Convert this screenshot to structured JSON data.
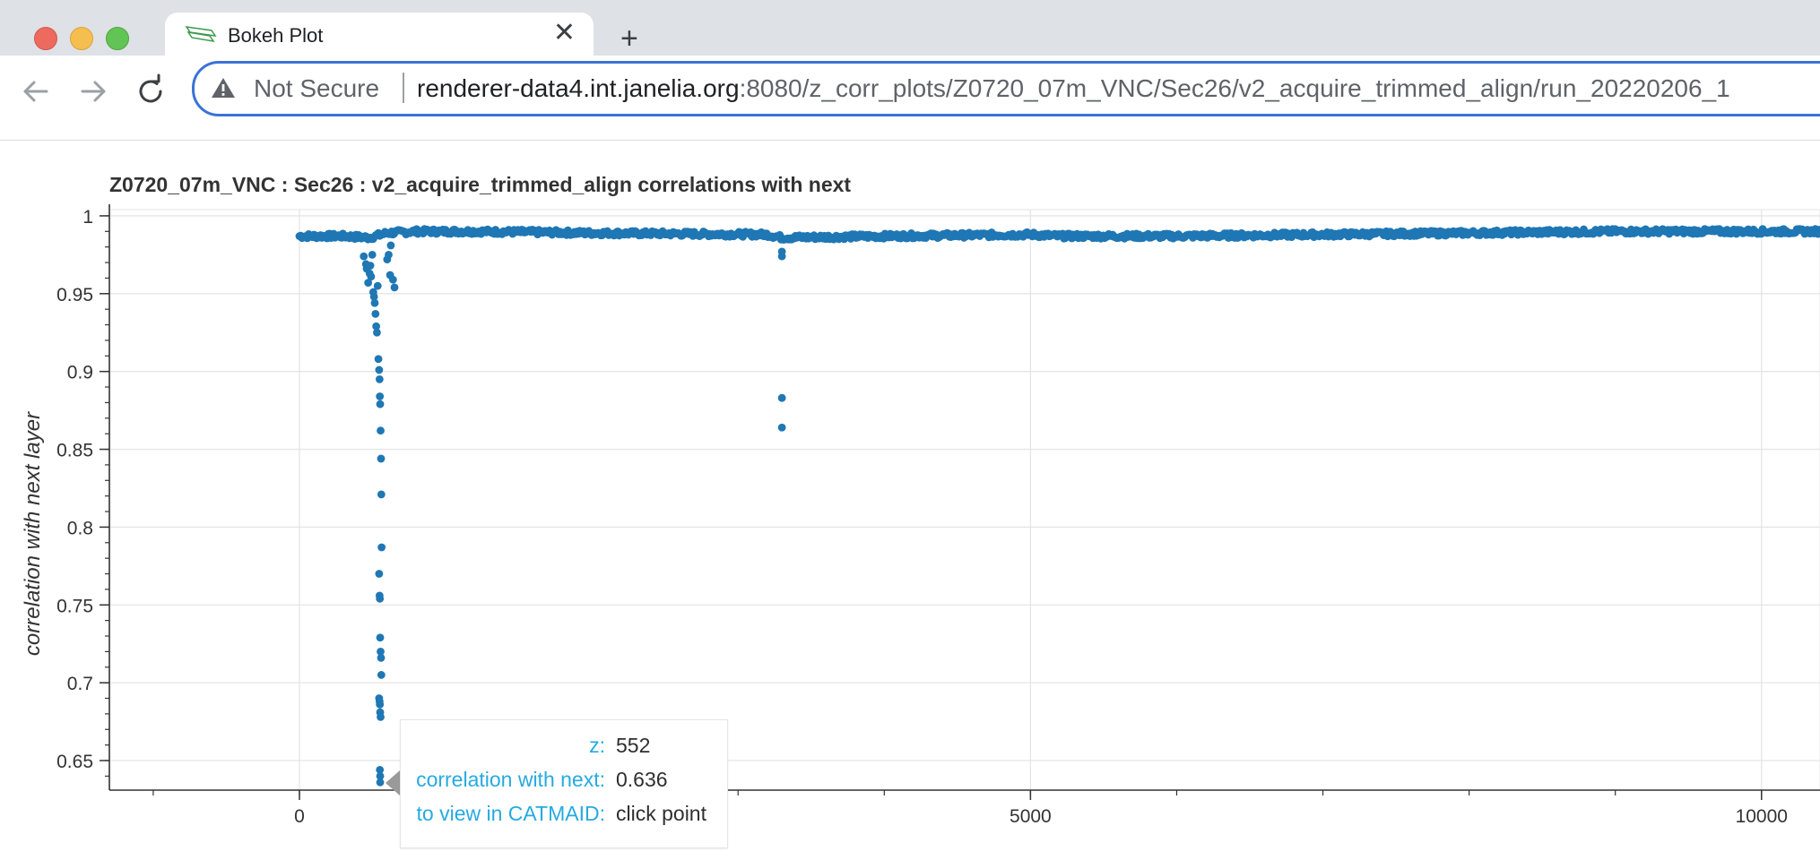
{
  "browser": {
    "tab_title": "Bokeh Plot",
    "tab_close": "✕",
    "new_tab": "+",
    "security_label": "Not Secure",
    "url_host": "renderer-data4.int.janelia.org",
    "url_rest": ":8080/z_corr_plots/Z0720_07m_VNC/Sec26/v2_acquire_trimmed_align/run_20220206_1",
    "icons": [
      "bokeh-logo-icon",
      "close-icon",
      "plus-icon",
      "back-arrow-icon",
      "forward-arrow-icon",
      "reload-icon",
      "warning-icon"
    ]
  },
  "tooltip": {
    "z_label": "z:",
    "z_value": "552",
    "corr_label": "correlation with next:",
    "corr_value": "0.636",
    "view_label": "to view in CATMAID:",
    "view_value": "click point"
  },
  "chart_data": {
    "type": "scatter",
    "title": "Z0720_07m_VNC : Sec26 : v2_acquire_trimmed_align correlations with next",
    "xlabel": "",
    "ylabel": "correlation with next layer",
    "xlim": [
      -1300,
      10400
    ],
    "ylim": [
      0.631,
      1.004
    ],
    "x_ticks": [
      "0",
      "5000",
      "10000"
    ],
    "y_ticks": [
      "0.65",
      "0.7",
      "0.75",
      "0.8",
      "0.85",
      "0.9",
      "0.95",
      "1"
    ],
    "grid": true,
    "color": "#1f77b4",
    "series": [
      {
        "baseline": [
          [
            0,
            0.987
          ],
          [
            300,
            0.987
          ],
          [
            480,
            0.986
          ],
          [
            600,
            0.989
          ],
          [
            800,
            0.99
          ],
          [
            1200,
            0.99
          ],
          [
            2000,
            0.989
          ],
          [
            3200,
            0.988
          ],
          [
            3300,
            0.986
          ],
          [
            4000,
            0.987
          ],
          [
            5000,
            0.988
          ],
          [
            5200,
            0.987
          ],
          [
            6000,
            0.987
          ],
          [
            7000,
            0.988
          ],
          [
            8000,
            0.989
          ],
          [
            9000,
            0.99
          ],
          [
            10400,
            0.99
          ]
        ],
        "points": [
          [
            440,
            0.974
          ],
          [
            455,
            0.969
          ],
          [
            460,
            0.966
          ],
          [
            470,
            0.957
          ],
          [
            480,
            0.963
          ],
          [
            485,
            0.968
          ],
          [
            490,
            0.961
          ],
          [
            498,
            0.975
          ],
          [
            505,
            0.951
          ],
          [
            510,
            0.948
          ],
          [
            515,
            0.944
          ],
          [
            520,
            0.937
          ],
          [
            525,
            0.929
          ],
          [
            530,
            0.925
          ],
          [
            535,
            0.955
          ],
          [
            540,
            0.908
          ],
          [
            545,
            0.901
          ],
          [
            548,
            0.895
          ],
          [
            550,
            0.884
          ],
          [
            552,
            0.879
          ],
          [
            555,
            0.862
          ],
          [
            558,
            0.844
          ],
          [
            560,
            0.821
          ],
          [
            562,
            0.787
          ],
          [
            545,
            0.77
          ],
          [
            548,
            0.756
          ],
          [
            550,
            0.754
          ],
          [
            552,
            0.729
          ],
          [
            555,
            0.72
          ],
          [
            558,
            0.716
          ],
          [
            560,
            0.705
          ],
          [
            545,
            0.69
          ],
          [
            548,
            0.688
          ],
          [
            550,
            0.686
          ],
          [
            552,
            0.681
          ],
          [
            555,
            0.678
          ],
          [
            550,
            0.644
          ],
          [
            552,
            0.64
          ],
          [
            552,
            0.636
          ],
          [
            600,
            0.972
          ],
          [
            620,
            0.962
          ],
          [
            640,
            0.959
          ],
          [
            650,
            0.954
          ],
          [
            625,
            0.981
          ],
          [
            610,
            0.975
          ],
          [
            3300,
            0.974
          ],
          [
            3300,
            0.977
          ],
          [
            3300,
            0.883
          ],
          [
            3300,
            0.864
          ]
        ]
      }
    ]
  }
}
